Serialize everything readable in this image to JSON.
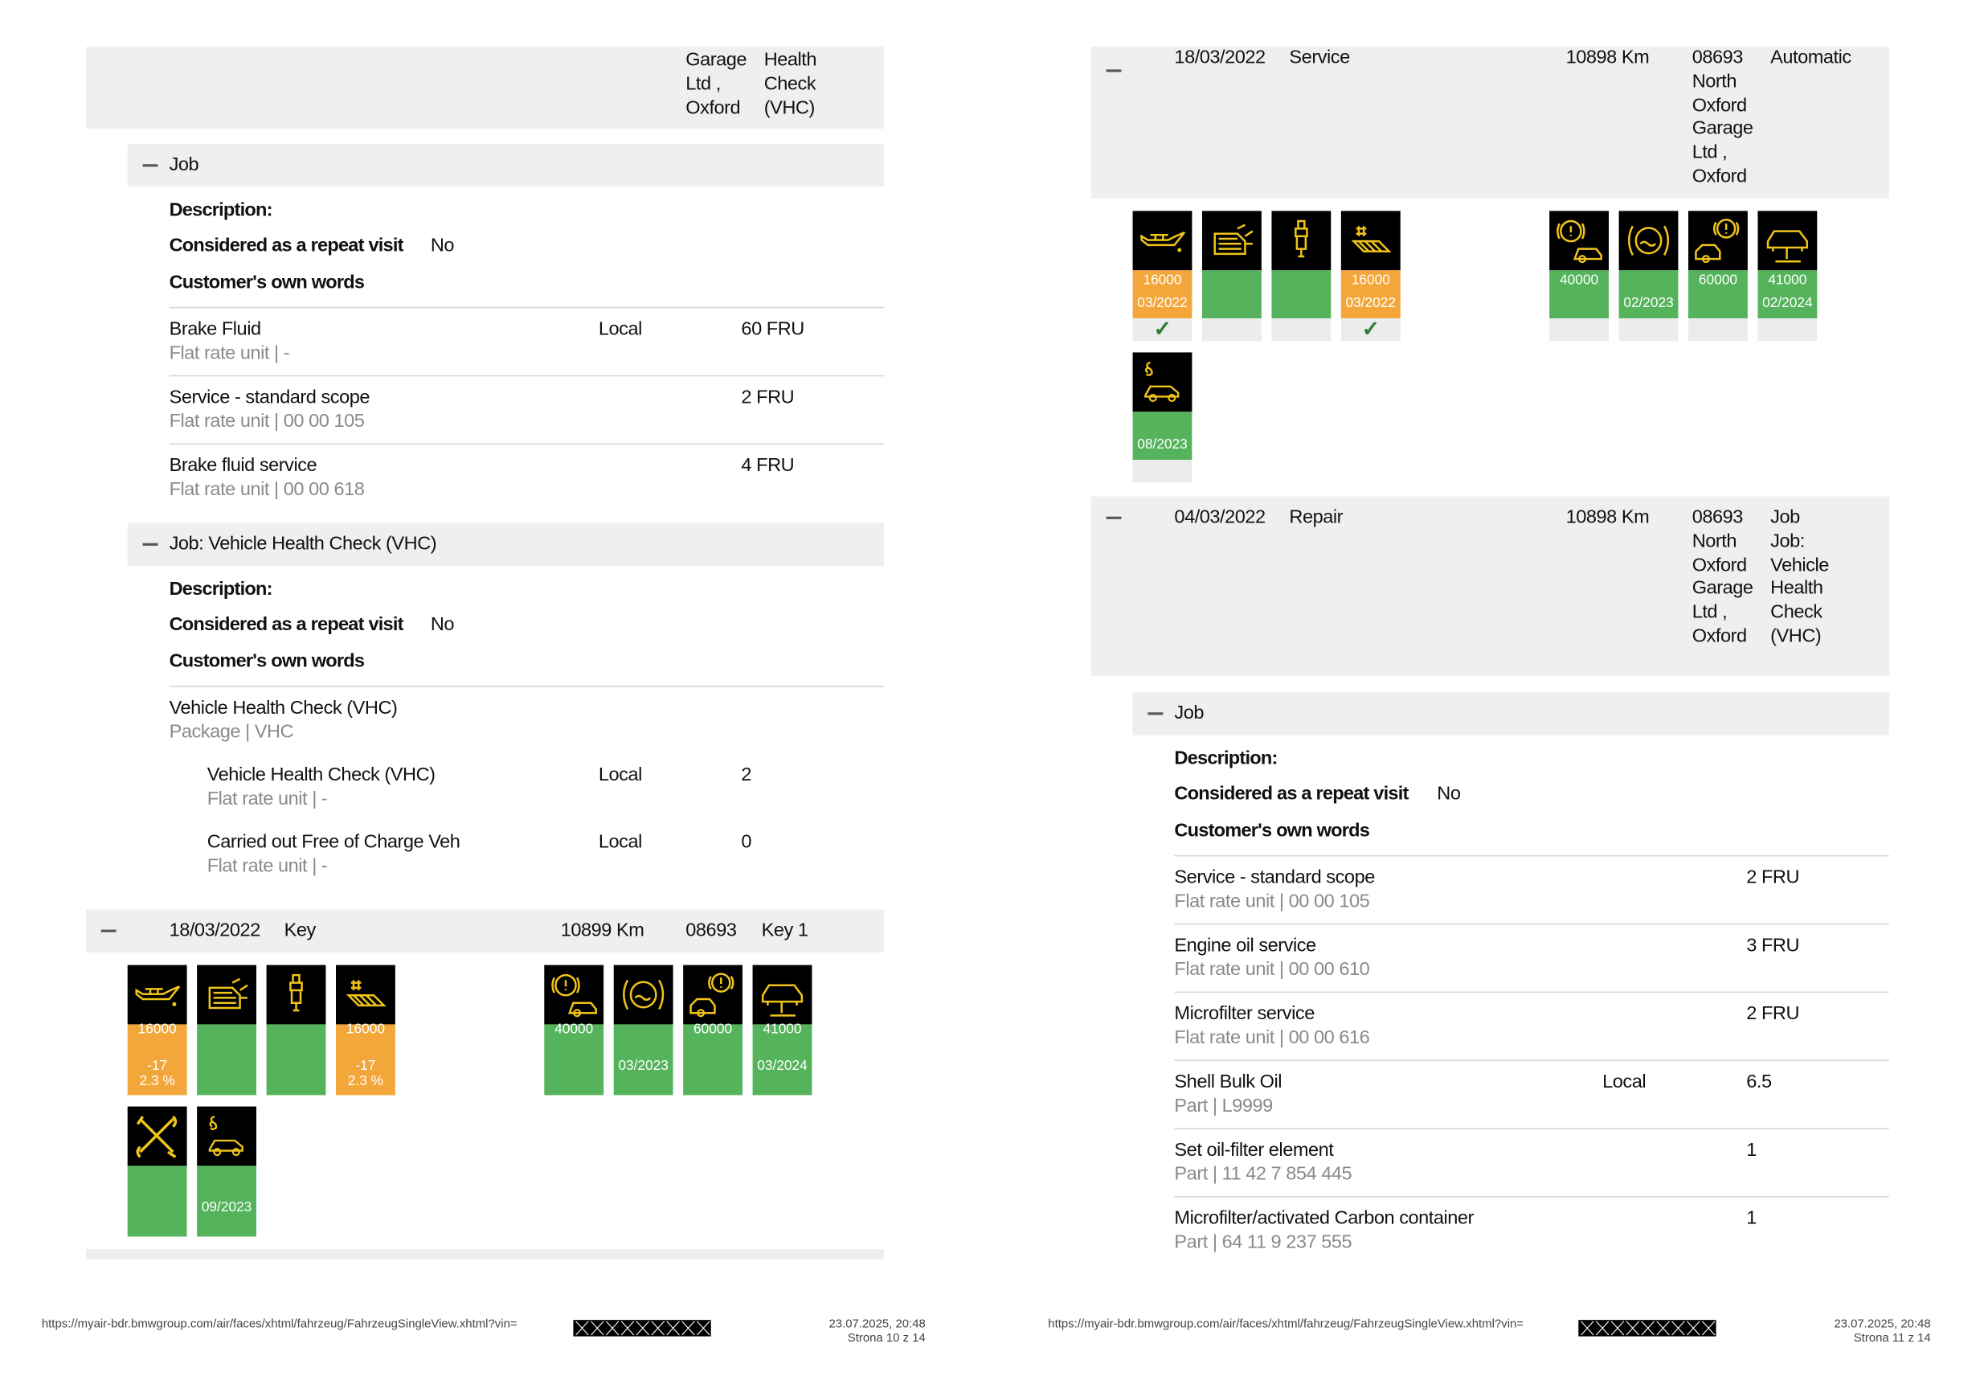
{
  "pages": [
    {
      "header_row": {
        "columns": [
          [
            "Garage",
            "Ltd ,",
            "Oxford"
          ],
          [
            "Health",
            "Check",
            "(VHC)"
          ]
        ]
      },
      "jobs": [
        {
          "title": "Job",
          "description": "Description:",
          "repeat_label": "Considered as a repeat visit",
          "repeat_value": "No",
          "own_words": "Customer's own words",
          "items": [
            {
              "name": "Brake Fluid",
              "sub": "Flat rate unit | -",
              "location": "Local",
              "amount": "60 FRU"
            },
            {
              "name": "Service - standard scope",
              "sub": "Flat rate unit | 00 00 105",
              "amount": "2 FRU"
            },
            {
              "name": "Brake fluid service",
              "sub": "Flat rate unit | 00 00 618",
              "amount": "4 FRU"
            }
          ]
        },
        {
          "title": "Job: Vehicle Health Check (VHC)",
          "description": "Description:",
          "repeat_label": "Considered as a repeat visit",
          "repeat_value": "No",
          "own_words": "Customer's own words",
          "items": [
            {
              "name": "Vehicle Health Check (VHC)",
              "sub": "Package | VHC",
              "subitems": [
                {
                  "name": "Vehicle Health Check (VHC)",
                  "sub": "Flat rate unit | -",
                  "location": "Local",
                  "amount": "2"
                },
                {
                  "name": "Carried out Free of Charge Veh",
                  "sub": "Flat rate unit | -",
                  "location": "Local",
                  "amount": "0"
                }
              ]
            }
          ]
        }
      ],
      "visits": [
        {
          "date": "18/03/2022",
          "type": "Key",
          "mileage": "10899 Km",
          "dealer": [
            "08693"
          ],
          "info": [
            "Key 1"
          ],
          "tile_groups": [
            [
              {
                "value": "16000",
                "lines": [
                  "-17",
                  "2.3 %"
                ],
                "color": "#f3a73b"
              },
              {
                "color": "#55b35c"
              },
              {
                "color": "#55b35c"
              },
              {
                "value": "16000",
                "lines": [
                  "-17",
                  "2.3 %"
                ],
                "color": "#f3a73b"
              }
            ],
            [
              {
                "value": "40000",
                "color": "#55b35c"
              },
              {
                "lines": [
                  "03/2023"
                ],
                "color": "#55b35c"
              },
              {
                "value": "60000",
                "color": "#55b35c"
              },
              {
                "value": "41000",
                "lines": [
                  "03/2024"
                ],
                "color": "#55b35c"
              }
            ],
            [
              {
                "color": "#55b35c"
              },
              {
                "lines": [
                  "09/2023"
                ],
                "color": "#55b35c"
              }
            ]
          ]
        }
      ],
      "footer": {
        "url": "https://myair-bdr.bmwgroup.com/air/faces/xhtml/fahrzeug/FahrzeugSingleView.xhtml?vin=",
        "timestamp": "23.07.2025, 20:48",
        "page": "Strona 10 z 14"
      }
    },
    {
      "visits": [
        {
          "date": "18/03/2022",
          "type": "Service",
          "mileage": "10898 Km",
          "dealer": [
            "08693",
            "North",
            "Oxford",
            "Garage",
            "Ltd ,",
            "Oxford"
          ],
          "info": [
            "Automatic"
          ],
          "tile_groups": [
            [
              {
                "value": "16000",
                "lines": [
                  "03/2022"
                ],
                "check": "✓",
                "color": "#f3a73b"
              },
              {
                "color": "#55b35c"
              },
              {
                "color": "#55b35c"
              },
              {
                "value": "16000",
                "lines": [
                  "03/2022"
                ],
                "check": "✓",
                "color": "#f3a73b"
              }
            ],
            [
              {
                "value": "40000",
                "color": "#55b35c"
              },
              {
                "lines": [
                  "02/2023"
                ],
                "color": "#55b35c"
              },
              {
                "value": "60000",
                "color": "#55b35c"
              },
              {
                "value": "41000",
                "lines": [
                  "02/2024"
                ],
                "color": "#55b35c"
              }
            ],
            [
              {
                "lines": [
                  "08/2023"
                ],
                "color": "#55b35c"
              }
            ]
          ]
        },
        {
          "date": "04/03/2022",
          "type": "Repair",
          "mileage": "10898 Km",
          "dealer": [
            "08693",
            "North",
            "Oxford",
            "Garage",
            "Ltd ,",
            "Oxford"
          ],
          "info": [
            "Job",
            "Job:",
            "Vehicle",
            "Health",
            "Check",
            "(VHC)"
          ]
        }
      ],
      "jobs": [
        {
          "title": "Job",
          "description": "Description:",
          "repeat_label": "Considered as a repeat visit",
          "repeat_value": "No",
          "own_words": "Customer's own words",
          "items": [
            {
              "name": "Service - standard scope",
              "sub": "Flat rate unit | 00 00 105",
              "amount": "2 FRU"
            },
            {
              "name": "Engine oil service",
              "sub": "Flat rate unit | 00 00 610",
              "amount": "3 FRU"
            },
            {
              "name": "Microfilter service",
              "sub": "Flat rate unit | 00 00 616",
              "amount": "2 FRU"
            },
            {
              "name": "Shell Bulk Oil",
              "sub": "Part | L9999",
              "location": "Local",
              "amount": "6.5"
            },
            {
              "name": "Set oil-filter element",
              "sub": "Part | 11 42 7 854 445",
              "amount": "1"
            },
            {
              "name": "Microfilter/activated Carbon container",
              "sub": "Part | 64 11 9 237 555",
              "amount": "1"
            }
          ]
        }
      ],
      "footer": {
        "url": "https://myair-bdr.bmwgroup.com/air/faces/xhtml/fahrzeug/FahrzeugSingleView.xhtml?vin=",
        "timestamp": "23.07.2025, 20:48",
        "page": "Strona 11 z 14"
      }
    }
  ]
}
